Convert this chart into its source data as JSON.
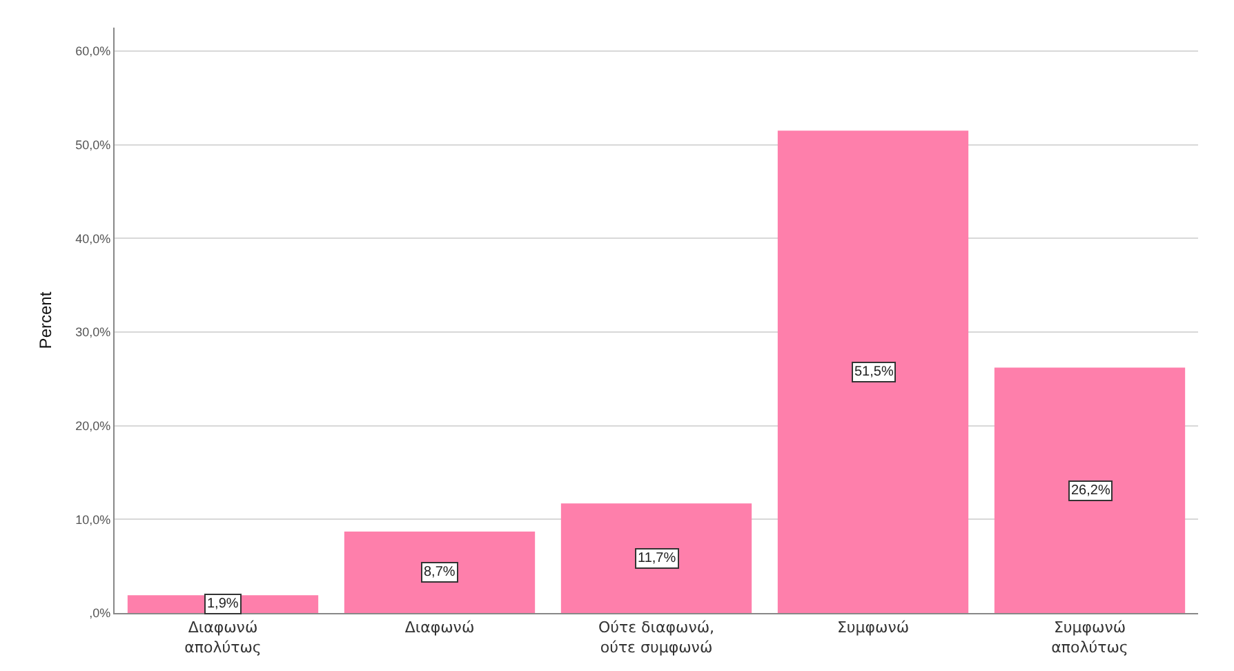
{
  "chart_data": {
    "type": "bar",
    "ylabel": "Percent",
    "categories": [
      "Διαφωνώ απολύτως",
      "Διαφωνώ",
      "Ούτε διαφωνώ, ούτε συμφωνώ",
      "Συμφωνώ",
      "Συμφωνώ απολύτως"
    ],
    "values": [
      1.9,
      8.7,
      11.7,
      51.5,
      26.2
    ],
    "value_labels": [
      "1,9%",
      "8,7%",
      "11,7%",
      "51,5%",
      "26,2%"
    ],
    "color": "#fe7fab",
    "ylim": [
      0,
      62.5
    ],
    "yticks": [
      {
        "value": 0,
        "label": ",0%"
      },
      {
        "value": 10,
        "label": "10,0%"
      },
      {
        "value": 20,
        "label": "20,0%"
      },
      {
        "value": 30,
        "label": "30,0%"
      },
      {
        "value": 40,
        "label": "40,0%"
      },
      {
        "value": 50,
        "label": "50,0%"
      },
      {
        "value": 60,
        "label": "60,0%"
      }
    ],
    "grid": "y",
    "legend": false
  }
}
